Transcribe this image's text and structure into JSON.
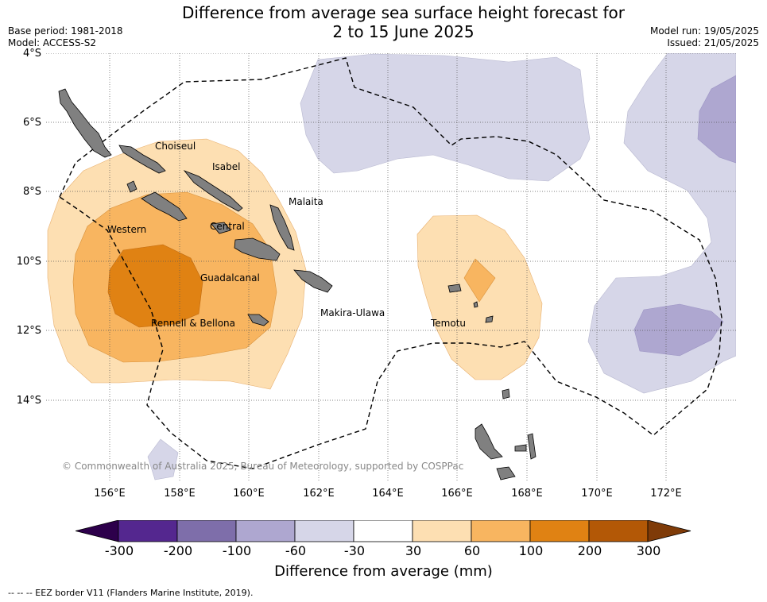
{
  "header": {
    "title_line1": "Difference from average sea surface height forecast for",
    "title_line2": "2 to 15 June 2025",
    "base_period": "Base period: 1981-2018",
    "model": "Model: ACCESS-S2",
    "model_run": "Model run: 19/05/2025",
    "issued": "Issued: 21/05/2025"
  },
  "axes": {
    "lat_labels": [
      "4°S",
      "6°S",
      "8°S",
      "10°S",
      "12°S",
      "14°S"
    ],
    "lon_labels": [
      "156°E",
      "158°E",
      "160°E",
      "162°E",
      "164°E",
      "166°E",
      "168°E",
      "170°E",
      "172°E"
    ]
  },
  "places": {
    "choiseul": "Choiseul",
    "isabel": "Isabel",
    "malaita": "Malaita",
    "western": "Western",
    "central": "Central",
    "guadalcanal": "Guadalcanal",
    "makira": "Makira-Ulawa",
    "rennell": "Rennell & Bellona",
    "temotu": "Temotu"
  },
  "copyright": "© Commonwealth of Australia 2025, Bureau of Meteorology, supported by COSPPac",
  "colorbar": {
    "title": "Difference from average (mm)",
    "ticks": [
      "-300",
      "-200",
      "-100",
      "-60",
      "-30",
      "30",
      "60",
      "100",
      "200",
      "300"
    ],
    "colors": [
      "#54278f",
      "#7e6eaa",
      "#aea7d0",
      "#d6d6e8",
      "#ffffff",
      "#fddfb2",
      "#f8b560",
      "#e08213",
      "#b35806"
    ],
    "under_color": "#2d004b",
    "over_color": "#7f3b08"
  },
  "legend_footer": "--  --  -- EEZ border V11 (Flanders Marine Institute, 2019)."
}
